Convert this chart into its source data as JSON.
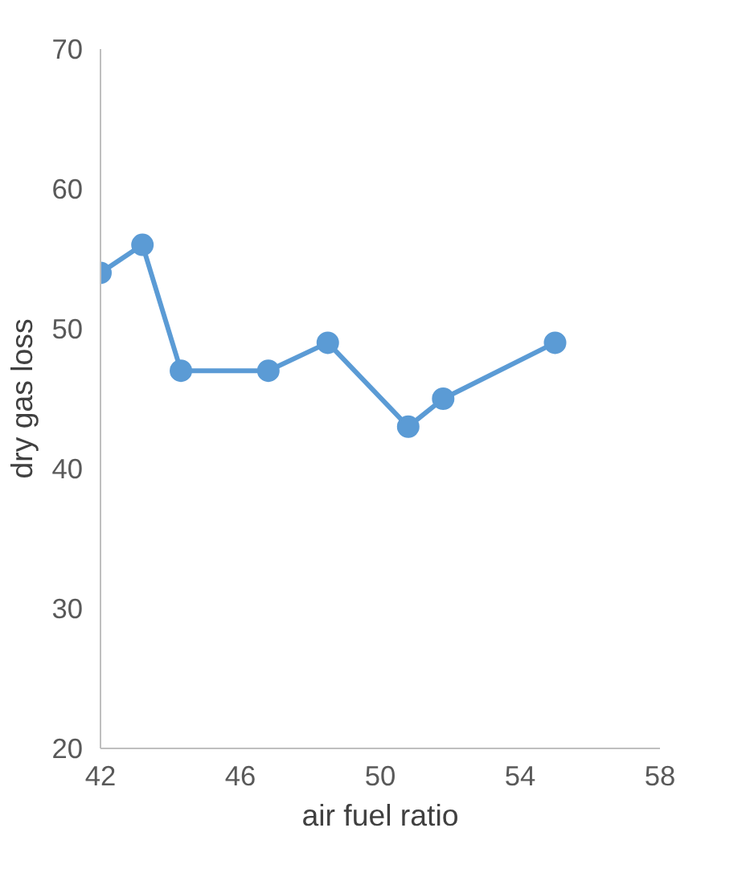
{
  "chart_data": {
    "type": "line",
    "xlabel": "air fuel ratio",
    "ylabel": "dry gas loss",
    "x": [
      42,
      43.2,
      44.3,
      46.8,
      48.5,
      50.8,
      51.8,
      55
    ],
    "series": [
      {
        "color": "#5b9bd5",
        "values": [
          54,
          56,
          47,
          47,
          49,
          43,
          45,
          49
        ]
      }
    ],
    "xlim": [
      42,
      58
    ],
    "xticks": [
      42,
      46,
      50,
      54,
      58
    ],
    "ylim": [
      20,
      70
    ],
    "yticks": [
      20,
      30,
      40,
      50,
      60,
      70
    ],
    "grid": false,
    "marker": "circle",
    "line_style": "solid"
  }
}
